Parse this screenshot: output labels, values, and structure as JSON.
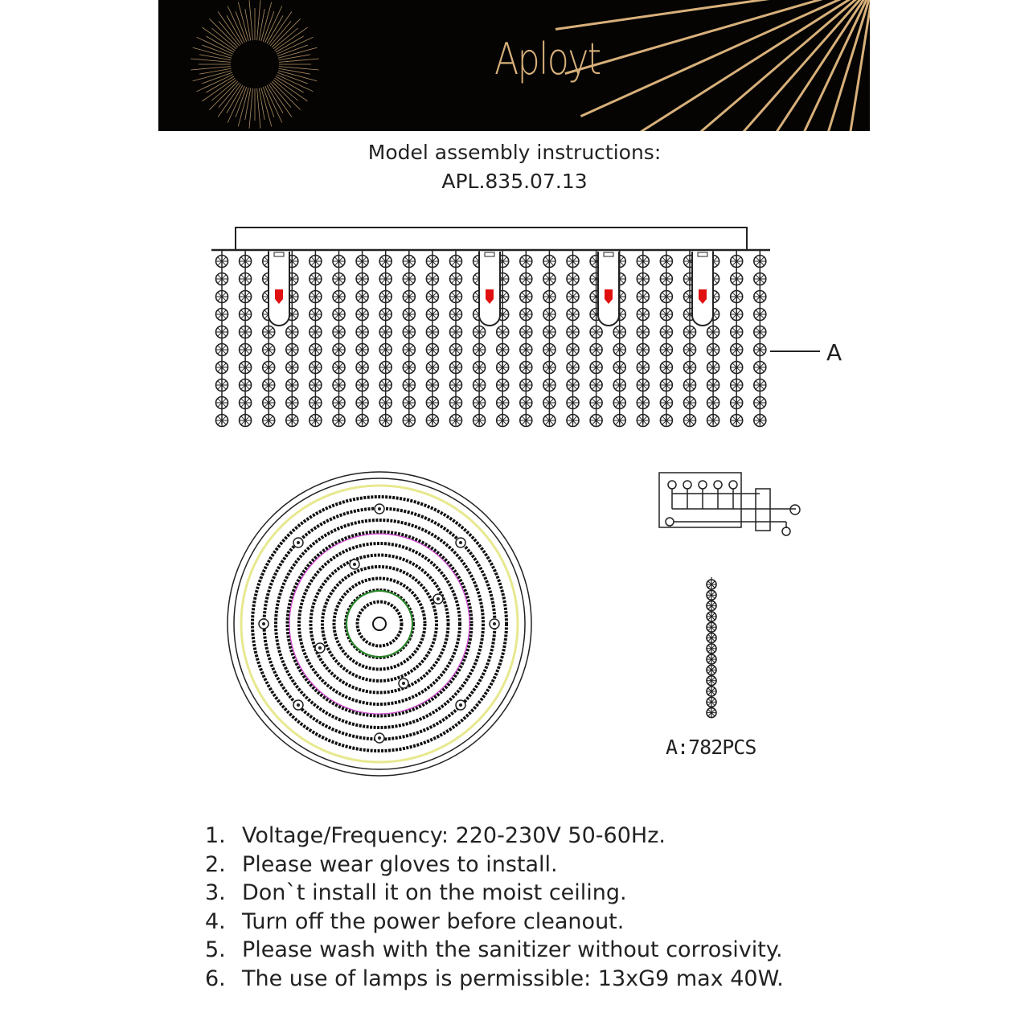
{
  "banner": {
    "brand": "Aployt",
    "colors": {
      "background": "#050403",
      "gold": "#d8b07a"
    }
  },
  "header": {
    "line1": "Model assembly instructions:",
    "line2": "APL.835.07.13"
  },
  "drawing": {
    "part_label": "A",
    "part_count": "A:782PCS",
    "accent_colors": {
      "bulb": "#e01010",
      "inner_ring": "#2a8a2a",
      "mid_ring": "#d040d0",
      "outer_ring": "#e8e890"
    }
  },
  "instructions": [
    {
      "num": "1.",
      "text": "Voltage/Frequency: 220-230V 50-60Hz."
    },
    {
      "num": "2.",
      "text": "Please wear gloves to install."
    },
    {
      "num": "3.",
      "text": "Don`t install it on the moist ceiling."
    },
    {
      "num": "4.",
      "text": "Turn off the power before cleanout."
    },
    {
      "num": "5.",
      "text": "Please wash with the sanitizer without corrosivity."
    },
    {
      "num": "6.",
      "text": "The use of lamps is permissible: 13xG9 max 40W."
    }
  ]
}
